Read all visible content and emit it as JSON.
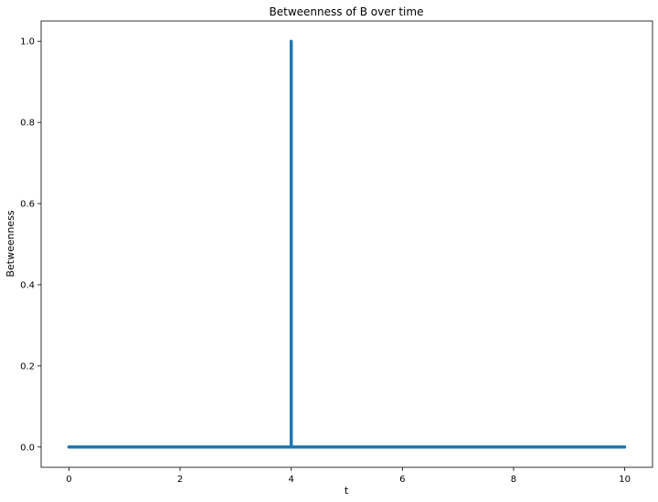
{
  "chart_data": {
    "type": "line",
    "title": "Betweenness of B over time",
    "xlabel": "t",
    "ylabel": "Betweenness",
    "xlim": [
      -0.5,
      10.5
    ],
    "ylim": [
      -0.05,
      1.05
    ],
    "xticks": [
      0,
      2,
      4,
      6,
      8,
      10
    ],
    "xtick_labels": [
      "0",
      "2",
      "4",
      "6",
      "8",
      "10"
    ],
    "yticks": [
      0.0,
      0.2,
      0.4,
      0.6,
      0.8,
      1.0
    ],
    "ytick_labels": [
      "0.0",
      "0.2",
      "0.4",
      "0.6",
      "0.8",
      "1.0"
    ],
    "grid": false,
    "legend": "none",
    "series": [
      {
        "color": "#1f77b4",
        "x": [
          0,
          4,
          4,
          4,
          10
        ],
        "y": [
          0,
          0,
          1.0,
          0,
          0
        ]
      }
    ]
  }
}
